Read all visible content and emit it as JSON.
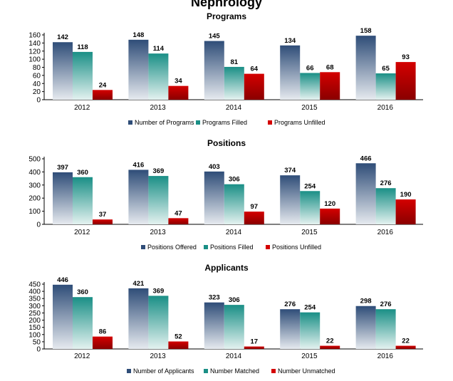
{
  "title": "Nephrology",
  "chart_data": [
    {
      "type": "bar",
      "title": "Programs",
      "categories": [
        "2012",
        "2013",
        "2014",
        "2015",
        "2016"
      ],
      "ylim": [
        0,
        160
      ],
      "yticks": [
        0,
        20,
        40,
        60,
        80,
        100,
        120,
        140,
        160
      ],
      "grid": false,
      "legend": "bottom",
      "series": [
        {
          "name": "Number of Programs",
          "color": "#2f4d78",
          "values": [
            142,
            148,
            145,
            134,
            158
          ]
        },
        {
          "name": "Programs Filled",
          "color": "#1a8f86",
          "values": [
            118,
            114,
            81,
            66,
            65
          ]
        },
        {
          "name": "Programs Unfilled",
          "color": "#d40000",
          "values": [
            24,
            34,
            64,
            68,
            93
          ]
        }
      ]
    },
    {
      "type": "bar",
      "title": "Positions",
      "categories": [
        "2012",
        "2013",
        "2014",
        "2015",
        "2016"
      ],
      "ylim": [
        0,
        500
      ],
      "yticks": [
        0,
        100,
        200,
        300,
        400,
        500
      ],
      "grid": false,
      "legend": "bottom",
      "series": [
        {
          "name": "Positions Offered",
          "color": "#2f4d78",
          "values": [
            397,
            416,
            403,
            374,
            466
          ]
        },
        {
          "name": "Positions Filled",
          "color": "#1a8f86",
          "values": [
            360,
            369,
            306,
            254,
            276
          ]
        },
        {
          "name": "Positions Unfilled",
          "color": "#d40000",
          "values": [
            37,
            47,
            97,
            120,
            190
          ]
        }
      ]
    },
    {
      "type": "bar",
      "title": "Applicants",
      "categories": [
        "2012",
        "2013",
        "2014",
        "2015",
        "2016"
      ],
      "ylim": [
        0,
        450
      ],
      "yticks": [
        0,
        50,
        100,
        150,
        200,
        250,
        300,
        350,
        400,
        450
      ],
      "grid": false,
      "legend": "bottom",
      "series": [
        {
          "name": "Number of Applicants",
          "color": "#2f4d78",
          "values": [
            446,
            421,
            323,
            276,
            298
          ]
        },
        {
          "name": "Number Matched",
          "color": "#1a8f86",
          "values": [
            360,
            369,
            306,
            254,
            276
          ]
        },
        {
          "name": "Number Unmatched",
          "color": "#d40000",
          "values": [
            86,
            52,
            17,
            22,
            22
          ]
        }
      ]
    }
  ]
}
